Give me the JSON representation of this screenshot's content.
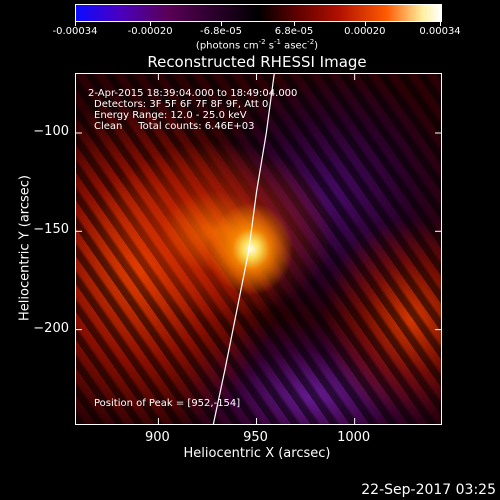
{
  "colorbar": {
    "tick_labels": [
      "-0.00034",
      "-0.00020",
      "-6.8e-05",
      "6.8e-05",
      "0.00020",
      "0.00034"
    ],
    "units": "(photons cm",
    "units_exp1": "-2",
    "units_mid": " s",
    "units_exp2": "-1",
    "units_mid2": " asec",
    "units_exp3": "-2",
    "units_end": ")"
  },
  "chart_data": {
    "type": "heatmap",
    "title": "Reconstructed RHESSI Image",
    "xlabel": "Heliocentric X (arcsec)",
    "ylabel": "Heliocentric Y (arcsec)",
    "xlim": [
      858,
      1044
    ],
    "ylim": [
      -248,
      -70
    ],
    "x_ticks": [
      900,
      950,
      1000
    ],
    "x_tick_labels": [
      "900",
      "950",
      "1000"
    ],
    "y_ticks": [
      -100,
      -150,
      -200
    ],
    "y_tick_labels": [
      "−100",
      "−150",
      "−200"
    ],
    "color_range": [
      -0.00034,
      0.00034
    ],
    "peak": {
      "x": 952,
      "y": -154
    },
    "limb_curve": [
      [
        959,
        -70
      ],
      [
        955,
        -100
      ],
      [
        950,
        -130
      ],
      [
        946,
        -160
      ],
      [
        940,
        -190
      ],
      [
        934,
        -220
      ],
      [
        928,
        -248
      ]
    ],
    "info_lines": [
      "2-Apr-2015 18:39:04.000 to 18:49:04.000",
      "Detectors: 3F 5F 6F 7F 8F 9F, Att 0",
      "Energy Range: 12.0 - 25.0 keV",
      "Clean     Total counts: 6.46E+03"
    ],
    "peak_label": "Position of Peak = [952,-154]"
  },
  "timestamp": "22-Sep-2017 03:25"
}
